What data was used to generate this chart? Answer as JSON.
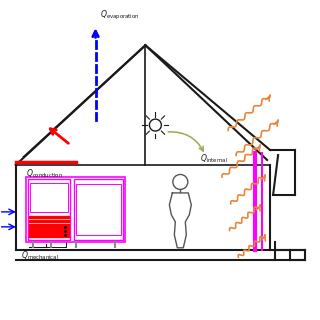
{
  "bg_color": "#ffffff",
  "black": "#1a1a1a",
  "magenta": "#ff00ff",
  "red": "#ff0000",
  "blue": "#0000ff",
  "orange": "#e8853a",
  "olive": "#9aaa50",
  "gray": "#555555",
  "lw_house": 1.5,
  "lw_roof": 1.5
}
